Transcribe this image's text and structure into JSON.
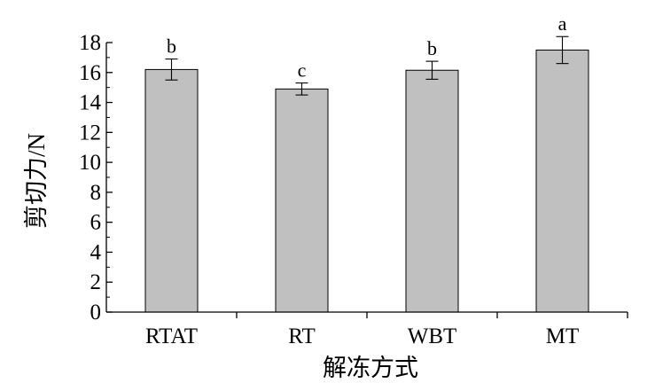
{
  "chart_data": {
    "type": "bar",
    "categories": [
      "RTAT",
      "RT",
      "WBT",
      "MT"
    ],
    "values": [
      16.2,
      14.9,
      16.15,
      17.5
    ],
    "errors": [
      0.7,
      0.4,
      0.6,
      0.9
    ],
    "letters": [
      "b",
      "c",
      "b",
      "a"
    ],
    "xlabel": "解冻方式",
    "ylabel": "剪切力/N",
    "ylim": [
      0,
      18
    ],
    "yticks": [
      0,
      2,
      4,
      6,
      8,
      10,
      12,
      14,
      16,
      18
    ],
    "grid": false,
    "colors": {
      "bar_fill": "#c0c0c0",
      "bar_stroke": "#000000",
      "axis": "#000000"
    }
  }
}
